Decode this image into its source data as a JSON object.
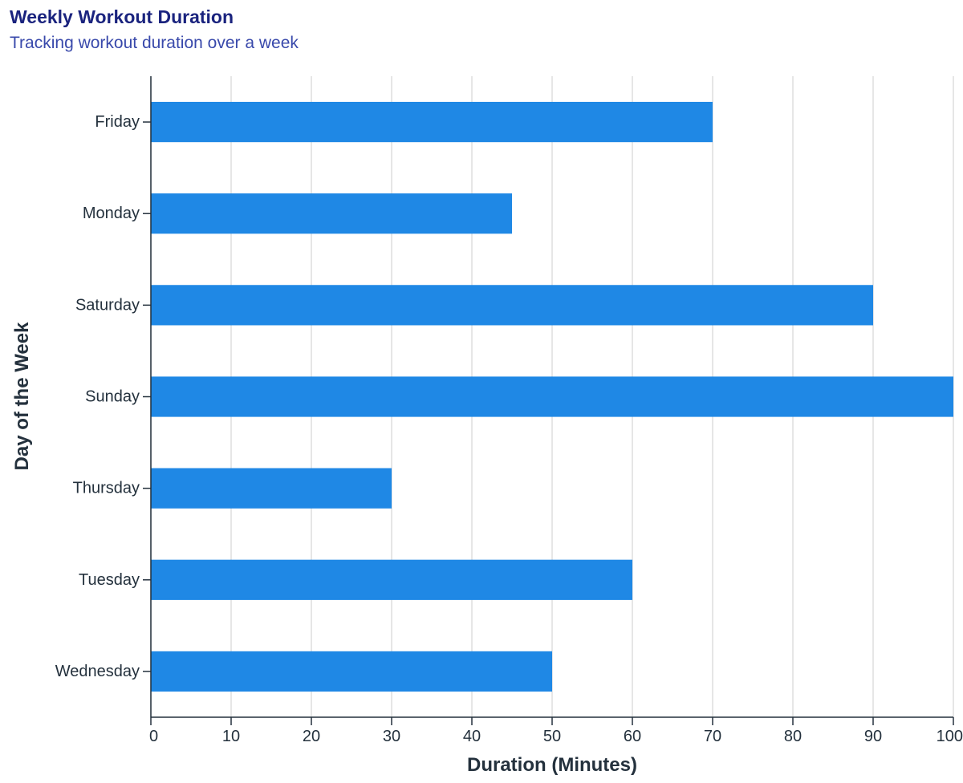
{
  "chart_data": {
    "type": "bar",
    "orientation": "horizontal",
    "title": "Weekly Workout Duration",
    "subtitle": "Tracking workout duration over a week",
    "xlabel": "Duration (Minutes)",
    "ylabel": "Day of the Week",
    "categories": [
      "Friday",
      "Monday",
      "Saturday",
      "Sunday",
      "Thursday",
      "Tuesday",
      "Wednesday"
    ],
    "values": [
      70,
      45,
      90,
      100,
      30,
      60,
      50
    ],
    "xlim": [
      0,
      100
    ],
    "xticks": [
      0,
      10,
      20,
      30,
      40,
      50,
      60,
      70,
      80,
      90,
      100
    ],
    "grid": "vertical",
    "legend": "none",
    "colors": {
      "bar": "#1f88e5",
      "title": "#1a237e",
      "subtitle": "#3949ab",
      "grid": "#dddddd",
      "axis": "#24313d",
      "text": "#24313d"
    }
  }
}
